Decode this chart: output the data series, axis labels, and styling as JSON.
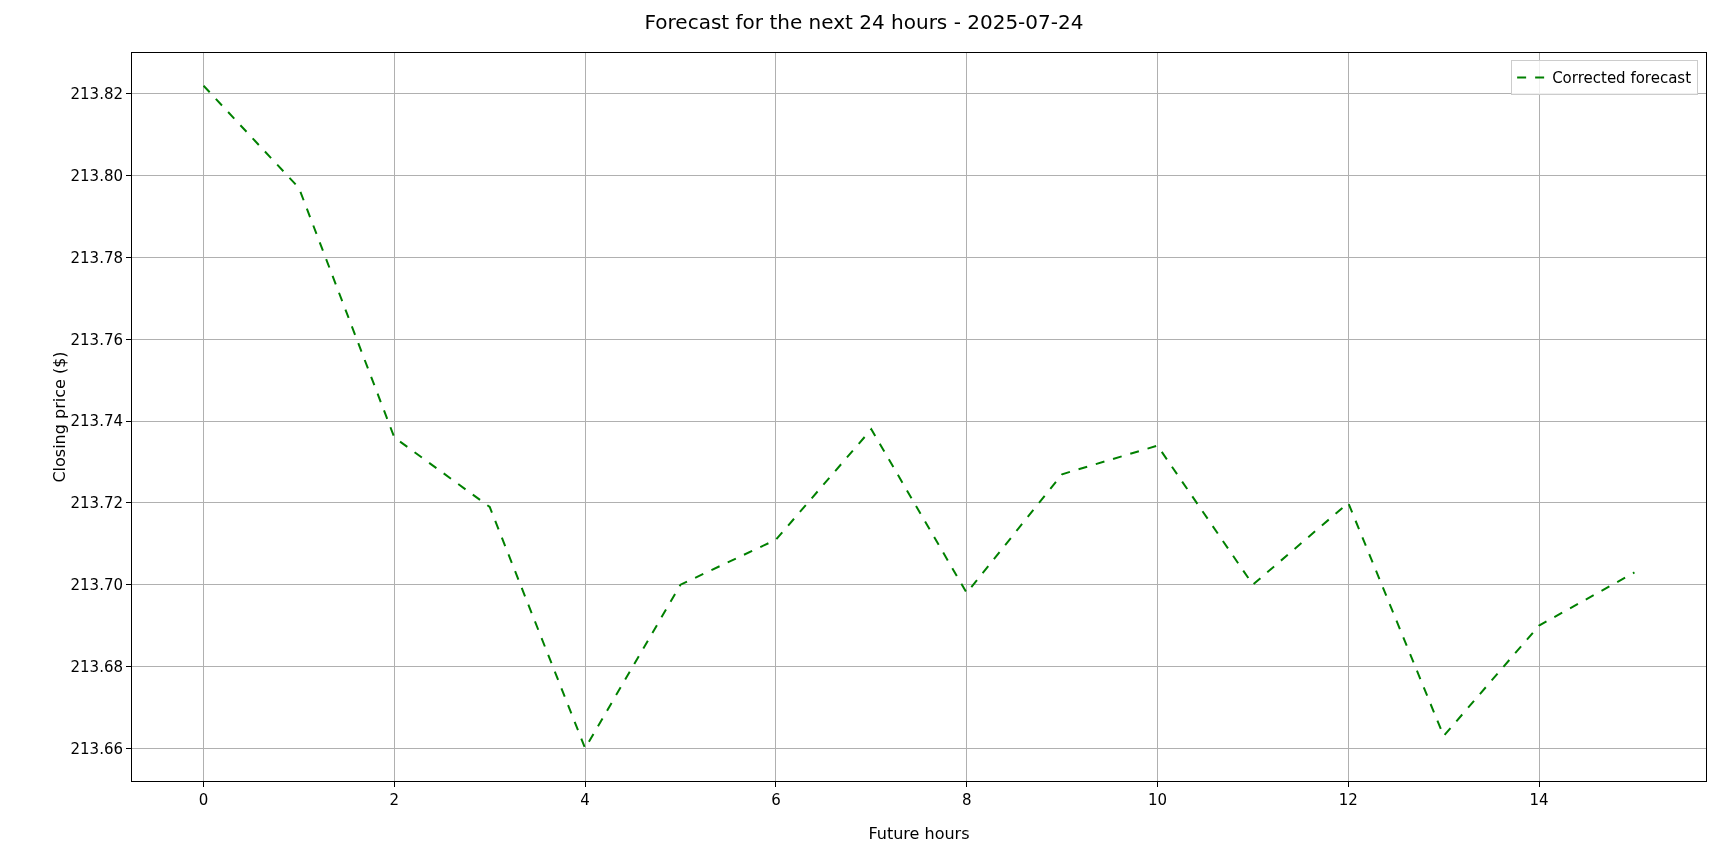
{
  "chart_data": {
    "type": "line",
    "title": "Forecast for the next 24 hours - 2025-07-24",
    "xlabel": "Future hours",
    "ylabel": "Closing price ($)",
    "x": [
      0,
      1,
      2,
      3,
      4,
      5,
      6,
      7,
      8,
      9,
      10,
      11,
      12,
      13,
      14,
      15
    ],
    "series": [
      {
        "name": "Corrected forecast",
        "color": "#008000",
        "line_style": "dashed",
        "values": [
          213.822,
          213.797,
          213.736,
          213.719,
          213.66,
          213.7,
          213.711,
          213.738,
          213.698,
          213.727,
          213.734,
          213.7,
          213.72,
          213.663,
          213.69,
          213.703
        ]
      }
    ],
    "xlim": [
      -0.75,
      15.75
    ],
    "xticks": [
      0,
      2,
      4,
      6,
      8,
      10,
      12,
      14
    ],
    "ylim": [
      213.652,
      213.83
    ],
    "yticks": [
      {
        "value": 213.66,
        "label": "213.66"
      },
      {
        "value": 213.68,
        "label": "213.68"
      },
      {
        "value": 213.7,
        "label": "213.70"
      },
      {
        "value": 213.72,
        "label": "213.72"
      },
      {
        "value": 213.74,
        "label": "213.74"
      },
      {
        "value": 213.76,
        "label": "213.76"
      },
      {
        "value": 213.78,
        "label": "213.78"
      },
      {
        "value": 213.8,
        "label": "213.80"
      },
      {
        "value": 213.82,
        "label": "213.82"
      }
    ],
    "grid": true,
    "legend": "top right",
    "marker": "none"
  }
}
